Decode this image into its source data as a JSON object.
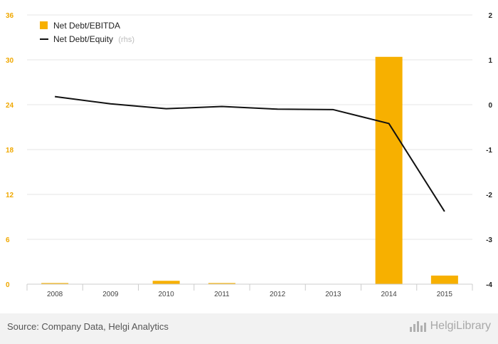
{
  "chart_data": {
    "type": "bar",
    "categories": [
      "2008",
      "2009",
      "2010",
      "2011",
      "2012",
      "2013",
      "2014",
      "2015"
    ],
    "series": [
      {
        "name": "Net Debt/EBITDA",
        "type": "bar",
        "axis": "left",
        "values": [
          0.15,
          0.0,
          0.45,
          0.15,
          0.0,
          0.0,
          30.4,
          1.15
        ]
      },
      {
        "name": "Net Debt/Equity",
        "type": "line",
        "axis": "right",
        "values": [
          0.18,
          0.02,
          -0.09,
          -0.04,
          -0.1,
          -0.11,
          -0.42,
          -2.38
        ]
      }
    ],
    "left_axis": {
      "ylim": [
        0,
        36
      ],
      "ticks": [
        "0",
        "6",
        "12",
        "18",
        "24",
        "30",
        "36"
      ]
    },
    "right_axis": {
      "ylim": [
        -4,
        2
      ],
      "ticks": [
        "-4",
        "-3",
        "-2",
        "-1",
        "0",
        "1",
        "2"
      ]
    },
    "legend": {
      "placement": "top-left",
      "rhs_note": "(rhs)"
    },
    "grid": true
  },
  "colors": {
    "bar": "#F7B000",
    "line": "#111111",
    "left_ticks": "#F0A800",
    "grid": "#e5e5e5"
  },
  "footer": {
    "source": "Source: Company Data, Helgi Analytics",
    "brand": "HelgiLibrary",
    "brand_icon": "bar-chart-logo-icon"
  }
}
